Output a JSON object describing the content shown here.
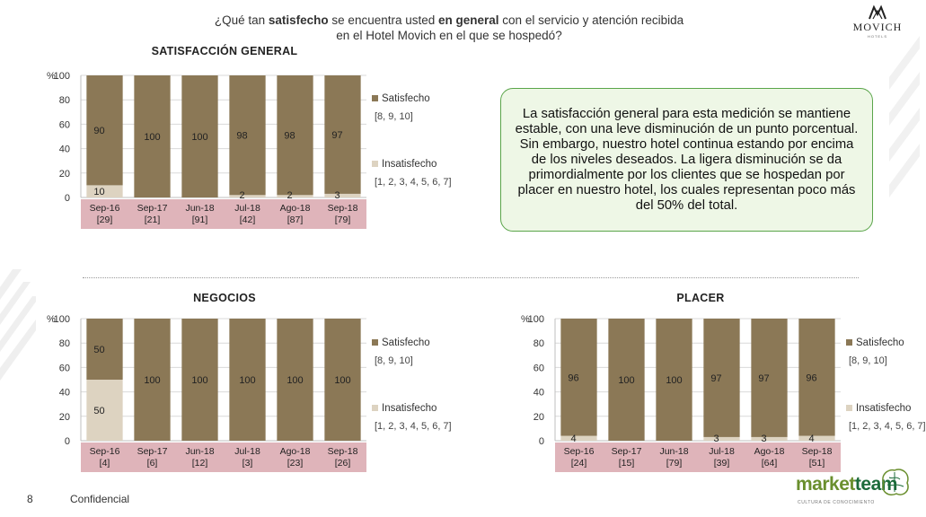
{
  "question": {
    "pre": "¿Qué tan ",
    "b1": "satisfecho",
    "mid": " se encuentra usted ",
    "b2": "en general",
    "post": " con el servicio y atención recibida en el Hotel Movich en el que se hospedó?"
  },
  "brand": {
    "name": "MOVICH",
    "sub": "HOTELS"
  },
  "note": "La satisfacción general para esta medición se mantiene estable, con una leve disminución de un punto porcentual. Sin embargo, nuestro hotel continua estando por encima de los niveles deseados. La ligera disminución se da primordialmente por los clientes que se hospedan por placer en nuestro hotel, los cuales representan poco más del 50% del total.",
  "footer": {
    "page": "8",
    "confidential": "Confidencial"
  },
  "marketteam": {
    "word1": "market",
    "word2": "team",
    "tagline": "CULTURA DE CONOCIMIENTO"
  },
  "colors": {
    "satisfecho": "#8b7856",
    "insatisfecho": "#ddd3c1",
    "category_band": "#dfb4ba",
    "note_border": "#5aa54a"
  },
  "chart_data": [
    {
      "type": "bar",
      "stacked": true,
      "title": "SATISFACCIÓN GENERAL",
      "ylabel": "%",
      "ylim": [
        0,
        100
      ],
      "yticks": [
        "0",
        "20",
        "40",
        "60",
        "80",
        "100"
      ],
      "categories": [
        "Sep-16",
        "Sep-17",
        "Jun-18",
        "Jul-18",
        "Ago-18",
        "Sep-18"
      ],
      "bases": [
        "[29]",
        "[21]",
        "[91]",
        "[42]",
        "[87]",
        "[79]"
      ],
      "series": [
        {
          "name": "Insatisfecho",
          "scale": "[1, 2, 3, 4, 5, 6, 7]",
          "values": [
            10,
            0,
            0,
            2,
            2,
            3
          ],
          "labels": [
            "10",
            "",
            "",
            "2",
            "2",
            "3"
          ]
        },
        {
          "name": "Satisfecho",
          "scale": "[8, 9, 10]",
          "values": [
            90,
            100,
            100,
            98,
            98,
            97
          ],
          "labels": [
            "90",
            "100",
            "100",
            "98",
            "98",
            "97"
          ]
        }
      ]
    },
    {
      "type": "bar",
      "stacked": true,
      "title": "NEGOCIOS",
      "ylabel": "%",
      "ylim": [
        0,
        100
      ],
      "yticks": [
        "0",
        "20",
        "40",
        "60",
        "80",
        "100"
      ],
      "categories": [
        "Sep-16",
        "Sep-17",
        "Jun-18",
        "Jul-18",
        "Ago-18",
        "Sep-18"
      ],
      "bases": [
        "[4]",
        "[6]",
        "[12]",
        "[3]",
        "[23]",
        "[26]"
      ],
      "series": [
        {
          "name": "Insatisfecho",
          "scale": "[1, 2, 3, 4, 5, 6, 7]",
          "values": [
            50,
            0,
            0,
            0,
            0,
            0
          ],
          "labels": [
            "50",
            "",
            "",
            "",
            "",
            ""
          ]
        },
        {
          "name": "Satisfecho",
          "scale": "[8, 9, 10]",
          "values": [
            50,
            100,
            100,
            100,
            100,
            100
          ],
          "labels": [
            "50",
            "100",
            "100",
            "100",
            "100",
            "100"
          ]
        }
      ]
    },
    {
      "type": "bar",
      "stacked": true,
      "title": "PLACER",
      "ylabel": "%",
      "ylim": [
        0,
        100
      ],
      "yticks": [
        "0",
        "20",
        "40",
        "60",
        "80",
        "100"
      ],
      "categories": [
        "Sep-16",
        "Sep-17",
        "Jun-18",
        "Jul-18",
        "Ago-18",
        "Sep-18"
      ],
      "bases": [
        "[24]",
        "[15]",
        "[79]",
        "[39]",
        "[64]",
        "[51]"
      ],
      "series": [
        {
          "name": "Insatisfecho",
          "scale": "[1, 2, 3, 4, 5, 6, 7]",
          "values": [
            4,
            0,
            0,
            3,
            3,
            4
          ],
          "labels": [
            "4",
            "",
            "",
            "3",
            "3",
            "4"
          ]
        },
        {
          "name": "Satisfecho",
          "scale": "[8, 9, 10]",
          "values": [
            96,
            100,
            100,
            97,
            97,
            96
          ],
          "labels": [
            "96",
            "100",
            "100",
            "97",
            "97",
            "96"
          ]
        }
      ]
    }
  ]
}
